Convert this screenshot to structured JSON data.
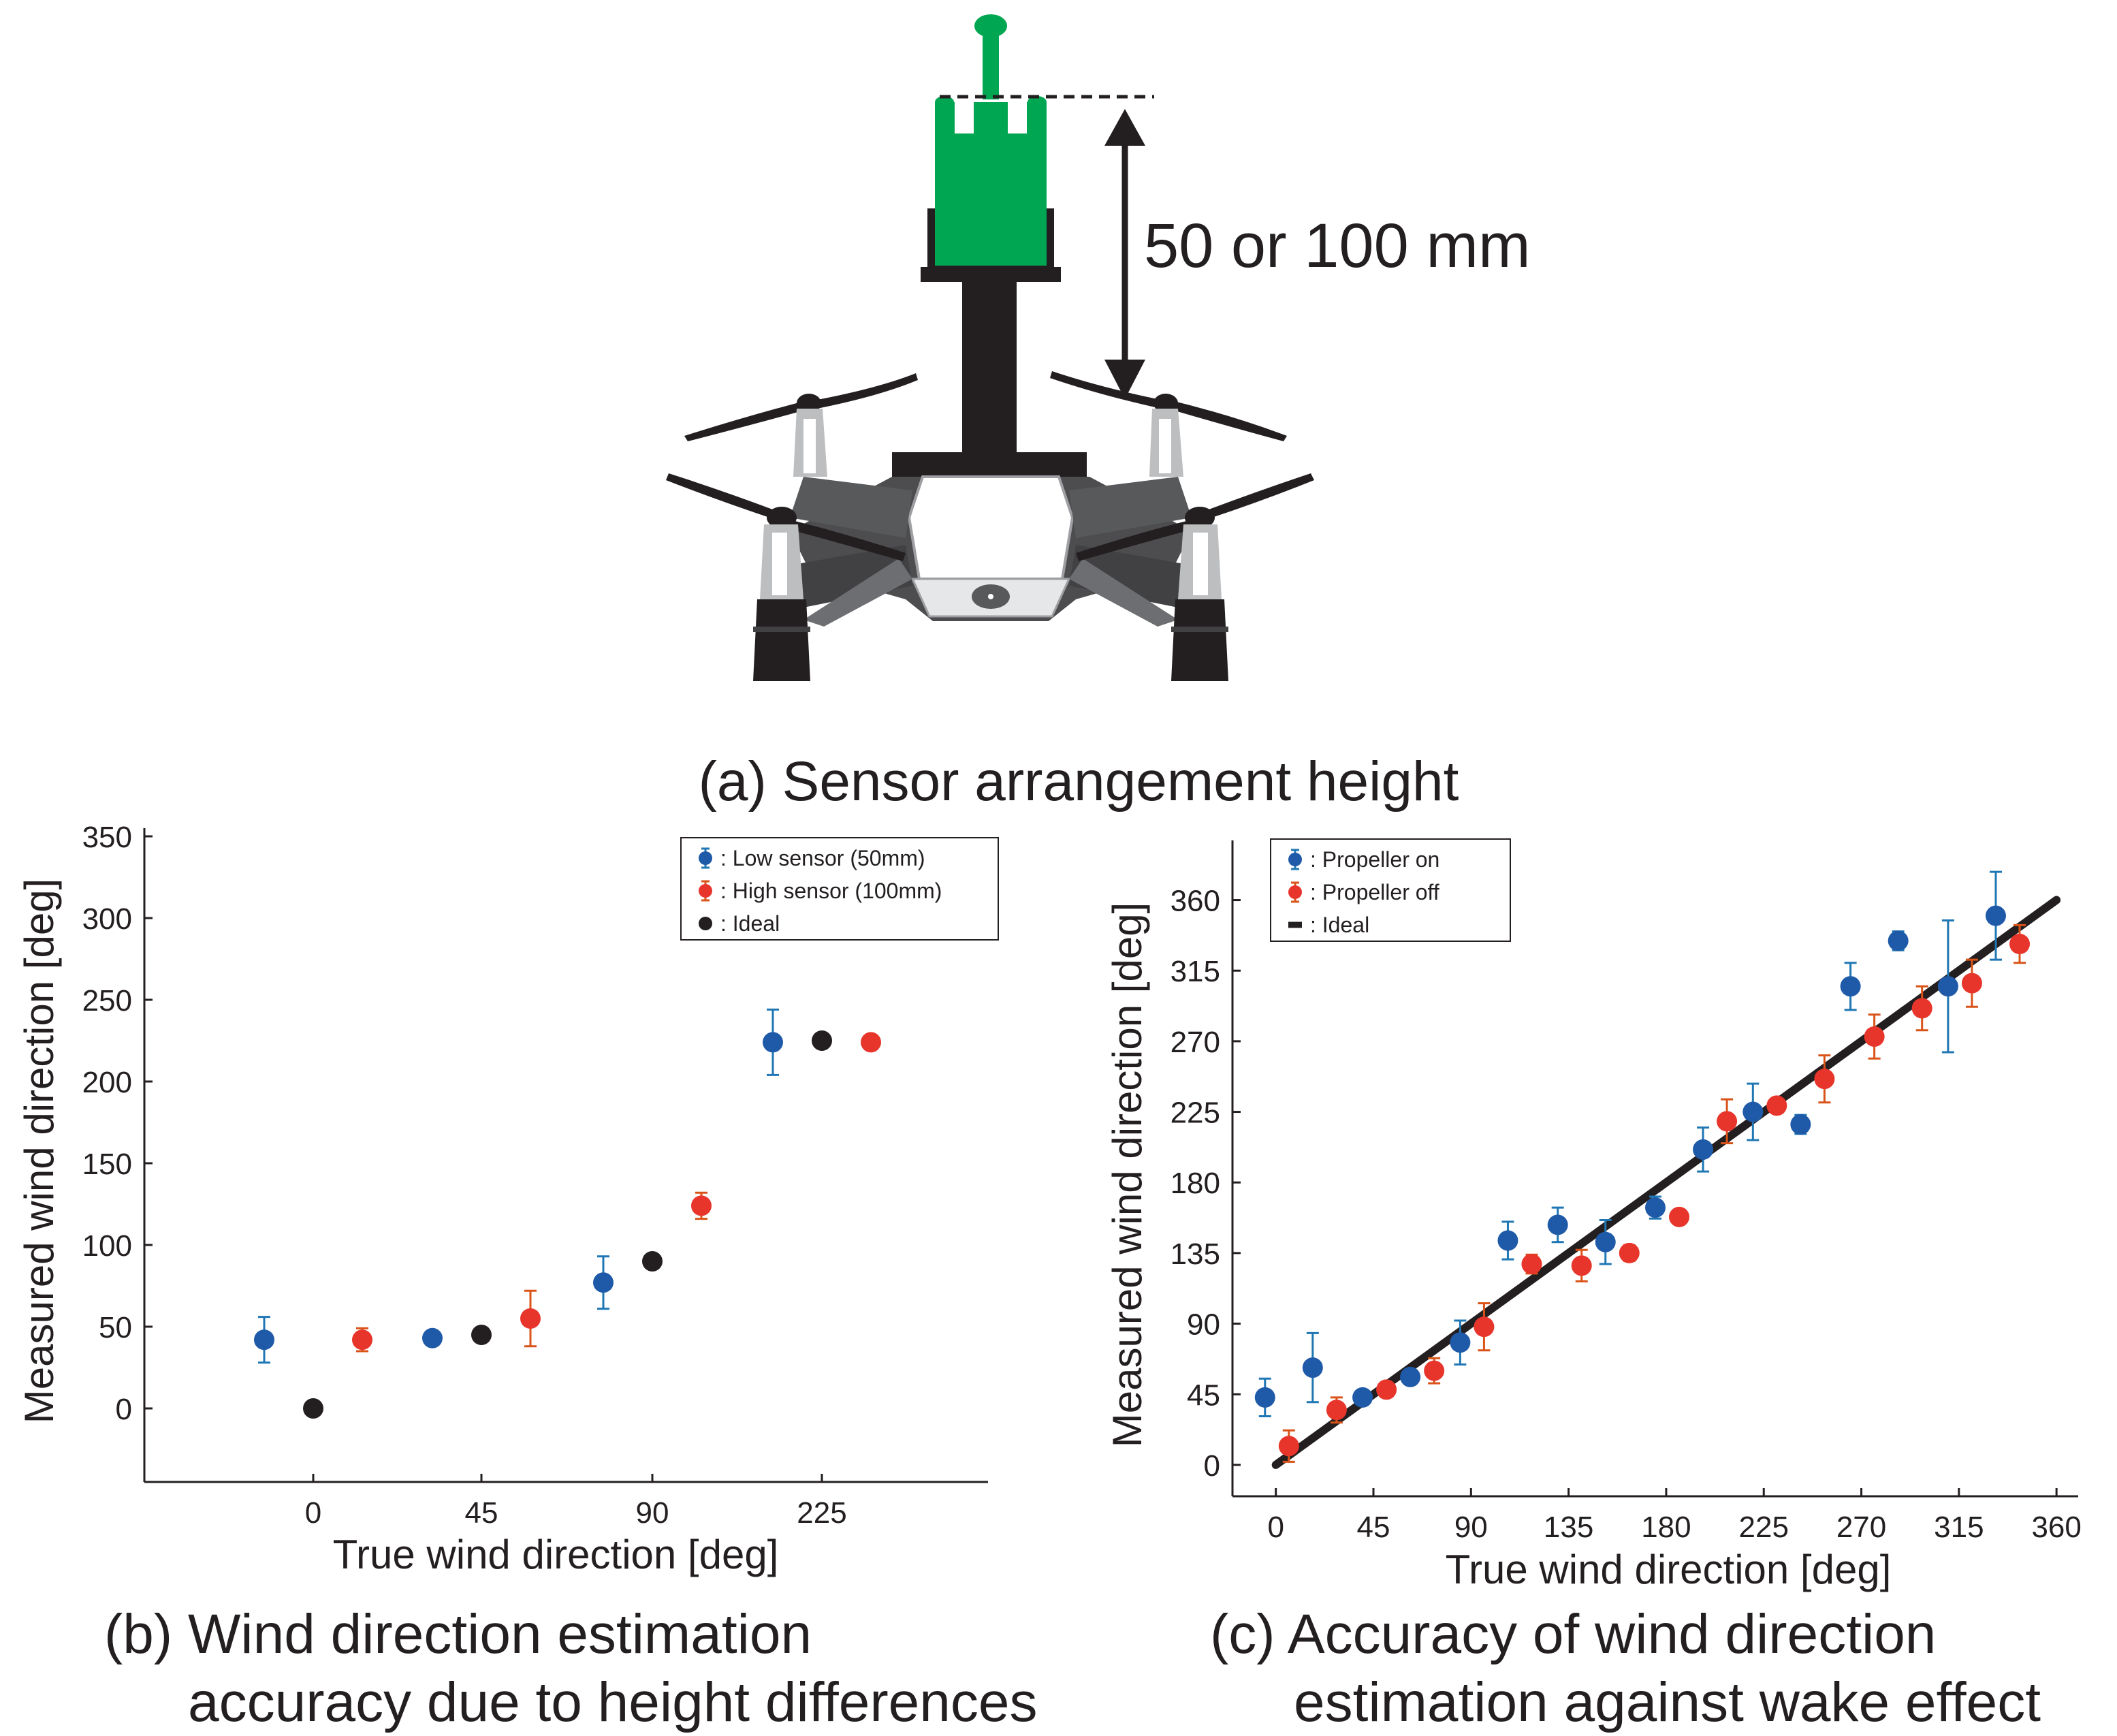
{
  "colors": {
    "blue": "#1f5aa8",
    "red": "#e8352b",
    "black": "#231f20",
    "err_blue": "#1f77b4",
    "err_red": "#d95319",
    "sensor_green": "#00a651",
    "mount": "#231f20",
    "drone_body": "#4d4d4f"
  },
  "icons": {
    "drone": "drone-with-sensor-illustration",
    "dimension_arrow": "double-headed-arrow"
  },
  "panel_a": {
    "dimension_label": "50 or 100 mm",
    "caption": "(a) Sensor arrangement height"
  },
  "panel_b": {
    "caption_line1": "(b) Wind direction estimation",
    "caption_line2": "accuracy due to height differences"
  },
  "panel_c": {
    "caption_line1": "(c) Accuracy of wind direction",
    "caption_line2": "estimation against wake effect"
  },
  "chart_data": [
    {
      "type": "scatter",
      "panel": "b",
      "xlabel": "True wind direction [deg]",
      "ylabel": "Measured wind direction [deg]",
      "categories": [
        "0",
        "45",
        "90",
        "225"
      ],
      "ylim": [
        -45,
        355
      ],
      "yticks": [
        0,
        50,
        100,
        150,
        200,
        250,
        300,
        350
      ],
      "grid": false,
      "legend_position": "top-right",
      "series": [
        {
          "name": ": Low sensor (50mm)",
          "color_key": "blue",
          "err_color_key": "err_blue",
          "offset": -0.3,
          "values": [
            42,
            43,
            77,
            224
          ],
          "errors": [
            14,
            0,
            16,
            20
          ]
        },
        {
          "name": ": High sensor (100mm)",
          "color_key": "red",
          "err_color_key": "err_red",
          "offset": 0.3,
          "values": [
            42,
            55,
            124,
            224
          ],
          "errors": [
            7,
            17,
            8,
            3
          ]
        },
        {
          "name": ": Ideal",
          "color_key": "black",
          "err_color_key": "black",
          "offset": 0,
          "values": [
            0,
            45,
            90,
            225
          ],
          "errors": [
            0,
            0,
            0,
            0
          ]
        }
      ]
    },
    {
      "type": "scatter",
      "panel": "c",
      "xlabel": "True wind direction [deg]",
      "ylabel": "Measured wind direction  [deg]",
      "xlim": [
        -20,
        370
      ],
      "ylim": [
        -20,
        398
      ],
      "xticks": [
        0,
        45,
        90,
        135,
        180,
        225,
        270,
        315,
        360
      ],
      "yticks": [
        0,
        45,
        90,
        135,
        180,
        225,
        270,
        315,
        360
      ],
      "grid": false,
      "legend_position": "top-left",
      "series": [
        {
          "name": ": Propeller on",
          "color_key": "blue",
          "err_color_key": "err_blue",
          "points": [
            [
              -5,
              43,
              12
            ],
            [
              17,
              62,
              22
            ],
            [
              40,
              43,
              3
            ],
            [
              62,
              56,
              4
            ],
            [
              85,
              78,
              14
            ],
            [
              107,
              143,
              12
            ],
            [
              130,
              153,
              11
            ],
            [
              152,
              142,
              14
            ],
            [
              175,
              164,
              7
            ],
            [
              197,
              201,
              14
            ],
            [
              220,
              225,
              18
            ],
            [
              242,
              217,
              6
            ],
            [
              265,
              305,
              15
            ],
            [
              287,
              334,
              6
            ],
            [
              310,
              305,
              42
            ],
            [
              332,
              350,
              28
            ]
          ]
        },
        {
          "name": ": Propeller off",
          "color_key": "red",
          "err_color_key": "err_red",
          "points": [
            [
              6,
              12,
              10
            ],
            [
              28,
              35,
              8
            ],
            [
              51,
              48,
              3
            ],
            [
              73,
              60,
              8
            ],
            [
              96,
              88,
              15
            ],
            [
              118,
              128,
              6
            ],
            [
              141,
              127,
              10
            ],
            [
              163,
              135,
              5
            ],
            [
              186,
              158,
              3
            ],
            [
              208,
              219,
              14
            ],
            [
              231,
              229,
              3
            ],
            [
              253,
              246,
              15
            ],
            [
              276,
              273,
              14
            ],
            [
              298,
              291,
              14
            ],
            [
              321,
              307,
              15
            ],
            [
              343,
              332,
              12
            ]
          ]
        },
        {
          "name": ": Ideal",
          "color_key": "black",
          "style": "line",
          "points": [
            [
              0,
              0,
              0
            ],
            [
              360,
              360,
              0
            ]
          ]
        }
      ]
    }
  ]
}
